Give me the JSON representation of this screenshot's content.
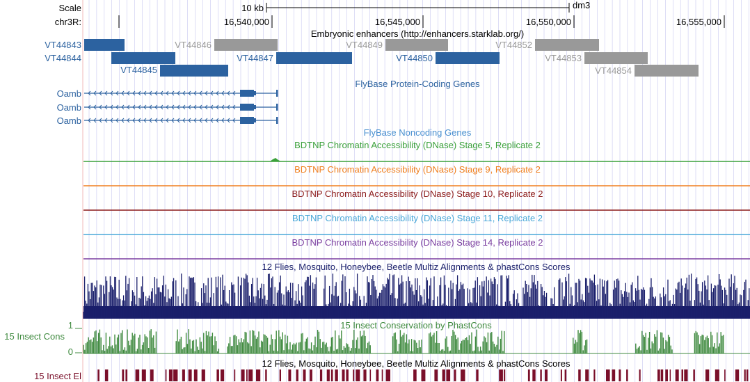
{
  "scale_row": {
    "label": "Scale",
    "bar_label": "10 kb",
    "assembly": "dm3"
  },
  "ruler": {
    "chrom_label": "chr3R:",
    "ticks": [
      "16,540,000",
      "16,545,000",
      "16,550,000",
      "16,555,000"
    ]
  },
  "tracks": {
    "enhancers": {
      "title": "Embryonic enhancers (http://enhancers.starklab.org/)",
      "items": [
        {
          "name": "VT44843",
          "active": true
        },
        {
          "name": "VT44844",
          "active": true
        },
        {
          "name": "VT44845",
          "active": true
        },
        {
          "name": "VT44846",
          "active": false
        },
        {
          "name": "VT44847",
          "active": true
        },
        {
          "name": "VT44849",
          "active": false
        },
        {
          "name": "VT44850",
          "active": true
        },
        {
          "name": "VT44852",
          "active": false
        },
        {
          "name": "VT44853",
          "active": false
        },
        {
          "name": "VT44854",
          "active": false
        }
      ]
    },
    "genes": {
      "title": "FlyBase Protein-Coding Genes",
      "items": [
        {
          "name": "Oamb"
        },
        {
          "name": "Oamb"
        },
        {
          "name": "Oamb"
        }
      ]
    },
    "noncoding": {
      "title": "FlyBase Noncoding Genes"
    },
    "dnase": [
      {
        "title": "BDTNP Chromatin Accessibility (DNase) Stage 5, Replicate 2",
        "color": "#3aa03a"
      },
      {
        "title": "BDTNP Chromatin Accessibility (DNase) Stage 9, Replicate 2",
        "color": "#f07f1e"
      },
      {
        "title": "BDTNP Chromatin Accessibility (DNase) Stage 10, Replicate 2",
        "color": "#8b1a1a"
      },
      {
        "title": "BDTNP Chromatin Accessibility (DNase) Stage 11, Replicate 2",
        "color": "#4aa8d8"
      },
      {
        "title": "BDTNP Chromatin Accessibility (DNase) Stage 14, Replicate 2",
        "color": "#7b3fa0"
      }
    ],
    "multiz": {
      "title": "12 Flies, Mosquito, Honeybee, Beetle Multiz Alignments & phastCons Scores"
    },
    "phastcons": {
      "title": "15 Insect Conservation by PhastCons",
      "side_label": "15 Insect Cons",
      "axis_max": "1",
      "axis_min": "0"
    },
    "elements": {
      "title": "12 Flies, Mosquito, Honeybee, Beetle Multiz Alignments & phastCons Scores",
      "side_label": "15 Insect El"
    }
  },
  "colors": {
    "gene_blue": "#2c62a0",
    "inactive_gray": "#999999",
    "multiz_navy": "#1a1f6b",
    "phastcons_green": "#3f8a3f",
    "element_maroon": "#7a0f2a",
    "grid": "#c8c8f0",
    "left_edge": "#f0b8b8"
  }
}
